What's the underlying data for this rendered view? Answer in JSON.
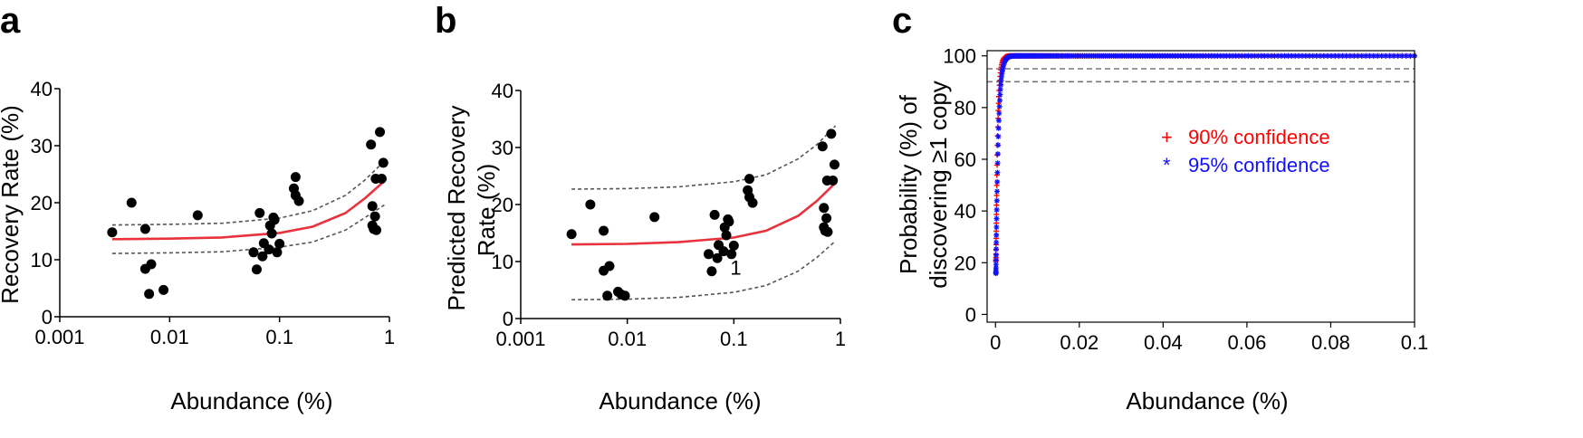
{
  "panels": [
    {
      "letter": "a"
    },
    {
      "letter": "b"
    },
    {
      "letter": "c"
    }
  ],
  "chart_data": [
    {
      "type": "scatter",
      "panel": "a",
      "xlabel": "Abundance (%)",
      "ylabel": "Recovery Rate (%)",
      "xscale": "log",
      "xlim": [
        0.001,
        1
      ],
      "ylim": [
        0,
        40
      ],
      "xticks": [
        0.001,
        0.01,
        0.1,
        1
      ],
      "xticklabels": [
        "0.001",
        "0.01",
        "0.1",
        "1"
      ],
      "yticks": [
        0,
        10,
        20,
        30,
        40
      ],
      "yticklabels": [
        "0",
        "10",
        "20",
        "30",
        "40"
      ],
      "colors": {
        "points": "#000000",
        "fit": "#e8323c",
        "ci": "#555555"
      },
      "points": [
        [
          0.003,
          14.8
        ],
        [
          0.0045,
          20
        ],
        [
          0.006,
          15.4
        ],
        [
          0.006,
          8.4
        ],
        [
          0.0068,
          9.2
        ],
        [
          0.0065,
          4
        ],
        [
          0.0088,
          4.7
        ],
        [
          0.018,
          17.8
        ],
        [
          0.058,
          11.3
        ],
        [
          0.062,
          8.3
        ],
        [
          0.066,
          18.2
        ],
        [
          0.07,
          10.6
        ],
        [
          0.072,
          12.9
        ],
        [
          0.08,
          11.8
        ],
        [
          0.082,
          16
        ],
        [
          0.085,
          14.6
        ],
        [
          0.088,
          17.4
        ],
        [
          0.09,
          17
        ],
        [
          0.095,
          11.3
        ],
        [
          0.1,
          12.8
        ],
        [
          0.135,
          22.5
        ],
        [
          0.14,
          24.5
        ],
        [
          0.14,
          21.3
        ],
        [
          0.15,
          20.3
        ],
        [
          0.68,
          30.2
        ],
        [
          0.7,
          19.4
        ],
        [
          0.7,
          16
        ],
        [
          0.72,
          15.4
        ],
        [
          0.74,
          17.6
        ],
        [
          0.76,
          15.2
        ],
        [
          0.75,
          24.2
        ],
        [
          0.82,
          32.4
        ],
        [
          0.85,
          24.2
        ],
        [
          0.88,
          27
        ]
      ],
      "fit": [
        [
          0.003,
          13.6
        ],
        [
          0.01,
          13.7
        ],
        [
          0.03,
          13.9
        ],
        [
          0.1,
          14.7
        ],
        [
          0.2,
          15.8
        ],
        [
          0.4,
          18.2
        ],
        [
          0.6,
          20.8
        ],
        [
          0.9,
          23.8
        ]
      ],
      "ci_upper": [
        [
          0.003,
          16.1
        ],
        [
          0.01,
          16.2
        ],
        [
          0.03,
          16.4
        ],
        [
          0.1,
          17.3
        ],
        [
          0.2,
          18.6
        ],
        [
          0.4,
          21.3
        ],
        [
          0.6,
          24
        ],
        [
          0.9,
          27.3
        ]
      ],
      "ci_lower": [
        [
          0.003,
          11.1
        ],
        [
          0.01,
          11.2
        ],
        [
          0.03,
          11.4
        ],
        [
          0.1,
          12.2
        ],
        [
          0.2,
          13.1
        ],
        [
          0.4,
          15.2
        ],
        [
          0.6,
          17.4
        ],
        [
          0.9,
          19.6
        ]
      ]
    },
    {
      "type": "scatter",
      "panel": "b",
      "xlabel": "Abundance (%)",
      "ylabel_lines": [
        "Predicted Recovery",
        "Rate (%)"
      ],
      "xscale": "log",
      "xlim": [
        0.001,
        1
      ],
      "ylim": [
        0,
        40
      ],
      "xticks": [
        0.001,
        0.01,
        0.1,
        1
      ],
      "xticklabels": [
        "0.001",
        "0.01",
        "0.1",
        "1"
      ],
      "yticks": [
        0,
        10,
        20,
        30,
        40
      ],
      "yticklabels": [
        "0",
        "10",
        "20",
        "30",
        "40"
      ],
      "annotations": [
        {
          "text": "1",
          "x": 0.1,
          "y": 9
        }
      ],
      "colors": {
        "points": "#000000",
        "fit": "#e8323c",
        "ci": "#555555"
      },
      "points": [
        [
          0.003,
          14.8
        ],
        [
          0.0045,
          20
        ],
        [
          0.006,
          15.4
        ],
        [
          0.006,
          8.4
        ],
        [
          0.0068,
          9.2
        ],
        [
          0.0065,
          4
        ],
        [
          0.0082,
          4.7
        ],
        [
          0.0095,
          4
        ],
        [
          0.0088,
          4.2
        ],
        [
          0.018,
          17.8
        ],
        [
          0.058,
          11.3
        ],
        [
          0.062,
          8.3
        ],
        [
          0.066,
          18.2
        ],
        [
          0.07,
          10.6
        ],
        [
          0.072,
          12.9
        ],
        [
          0.08,
          11.8
        ],
        [
          0.082,
          16
        ],
        [
          0.085,
          14.6
        ],
        [
          0.088,
          17.4
        ],
        [
          0.09,
          17
        ],
        [
          0.095,
          11.3
        ],
        [
          0.1,
          12.8
        ],
        [
          0.135,
          22.5
        ],
        [
          0.14,
          24.5
        ],
        [
          0.14,
          21.3
        ],
        [
          0.15,
          20.3
        ],
        [
          0.68,
          30.2
        ],
        [
          0.7,
          19.4
        ],
        [
          0.7,
          16
        ],
        [
          0.72,
          15.4
        ],
        [
          0.74,
          17.6
        ],
        [
          0.76,
          15.2
        ],
        [
          0.75,
          24.2
        ],
        [
          0.82,
          32.4
        ],
        [
          0.85,
          24.2
        ],
        [
          0.88,
          27
        ]
      ],
      "fit": [
        [
          0.003,
          13
        ],
        [
          0.01,
          13.1
        ],
        [
          0.03,
          13.4
        ],
        [
          0.1,
          14.2
        ],
        [
          0.2,
          15.4
        ],
        [
          0.4,
          18
        ],
        [
          0.6,
          20.6
        ],
        [
          0.9,
          23.8
        ]
      ],
      "ci_upper": [
        [
          0.003,
          22.7
        ],
        [
          0.01,
          22.8
        ],
        [
          0.03,
          23.1
        ],
        [
          0.1,
          24
        ],
        [
          0.2,
          25.2
        ],
        [
          0.4,
          28
        ],
        [
          0.6,
          30.5
        ],
        [
          0.9,
          33.8
        ]
      ],
      "ci_lower": [
        [
          0.003,
          3.3
        ],
        [
          0.01,
          3.4
        ],
        [
          0.03,
          3.7
        ],
        [
          0.1,
          4.6
        ],
        [
          0.2,
          5.8
        ],
        [
          0.4,
          8.3
        ],
        [
          0.6,
          10.7
        ],
        [
          0.9,
          13.6
        ]
      ]
    },
    {
      "type": "line",
      "panel": "c",
      "xlabel": "Abundance (%)",
      "ylabel_lines": [
        "Probability (%) of",
        "discovering ≥1 copy"
      ],
      "xlim": [
        -0.002,
        0.1
      ],
      "ylim": [
        -3,
        102
      ],
      "xticks": [
        0,
        0.02,
        0.04,
        0.06,
        0.08,
        0.1
      ],
      "xticklabels": [
        "0",
        "0.02",
        "0.04",
        "0.06",
        "0.08",
        "0.1"
      ],
      "yticks": [
        0,
        20,
        40,
        60,
        80,
        100
      ],
      "yticklabels": [
        "0",
        "20",
        "40",
        "60",
        "80",
        "100"
      ],
      "reference_lines": [
        90,
        95
      ],
      "grid": false,
      "legend_position": "center-right",
      "series": [
        {
          "name": "90% confidence",
          "marker": "+",
          "color": "#ff0000",
          "rate": 0.0004341
        },
        {
          "name": "95% confidence",
          "marker": "*",
          "color": "#1010ff",
          "rate": 0.0005791
        }
      ],
      "samples_x_range": [
        0.0001,
        0.1
      ],
      "samples_count": 220
    }
  ]
}
